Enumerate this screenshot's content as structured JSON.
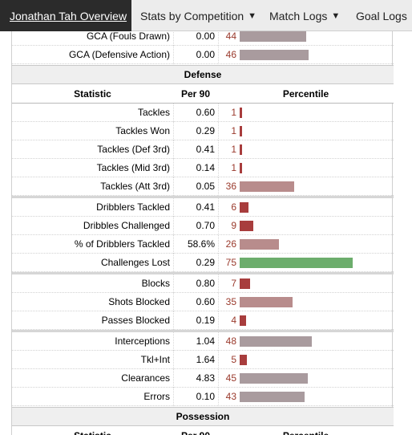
{
  "nav": {
    "tabs": [
      {
        "label": "Jonathan Tah Overview"
      },
      {
        "label": "Stats by Competition"
      },
      {
        "label": "Match Logs"
      },
      {
        "label": "Goal Logs"
      }
    ],
    "caret": "▼"
  },
  "colors": {
    "bar_low": "#a83d3d",
    "bar_mid": "#b88c8c",
    "bar_neutral": "#a99b9e",
    "bar_high": "#6cad6c"
  },
  "columns": {
    "statistic": "Statistic",
    "per90": "Per 90",
    "percentile": "Percentile"
  },
  "gca_rows": [
    {
      "label": "GCA (Fouls Drawn)",
      "per90": "0.00",
      "pct": 44
    },
    {
      "label": "GCA (Defensive Action)",
      "per90": "0.00",
      "pct": 46
    }
  ],
  "defense": {
    "title": "Defense",
    "groups": [
      [
        {
          "label": "Tackles",
          "per90": "0.60",
          "pct": 1
        },
        {
          "label": "Tackles Won",
          "per90": "0.29",
          "pct": 1
        },
        {
          "label": "Tackles (Def 3rd)",
          "per90": "0.41",
          "pct": 1
        },
        {
          "label": "Tackles (Mid 3rd)",
          "per90": "0.14",
          "pct": 1
        },
        {
          "label": "Tackles (Att 3rd)",
          "per90": "0.05",
          "pct": 36
        }
      ],
      [
        {
          "label": "Dribblers Tackled",
          "per90": "0.41",
          "pct": 6
        },
        {
          "label": "Dribbles Challenged",
          "per90": "0.70",
          "pct": 9
        },
        {
          "label": "% of Dribblers Tackled",
          "per90": "58.6%",
          "pct": 26
        },
        {
          "label": "Challenges Lost",
          "per90": "0.29",
          "pct": 75
        }
      ],
      [
        {
          "label": "Blocks",
          "per90": "0.80",
          "pct": 7
        },
        {
          "label": "Shots Blocked",
          "per90": "0.60",
          "pct": 35
        },
        {
          "label": "Passes Blocked",
          "per90": "0.19",
          "pct": 4
        }
      ],
      [
        {
          "label": "Interceptions",
          "per90": "1.04",
          "pct": 48
        },
        {
          "label": "Tkl+Int",
          "per90": "1.64",
          "pct": 5
        },
        {
          "label": "Clearances",
          "per90": "4.83",
          "pct": 45
        },
        {
          "label": "Errors",
          "per90": "0.10",
          "pct": 43
        }
      ]
    ]
  },
  "possession": {
    "title": "Possession"
  }
}
